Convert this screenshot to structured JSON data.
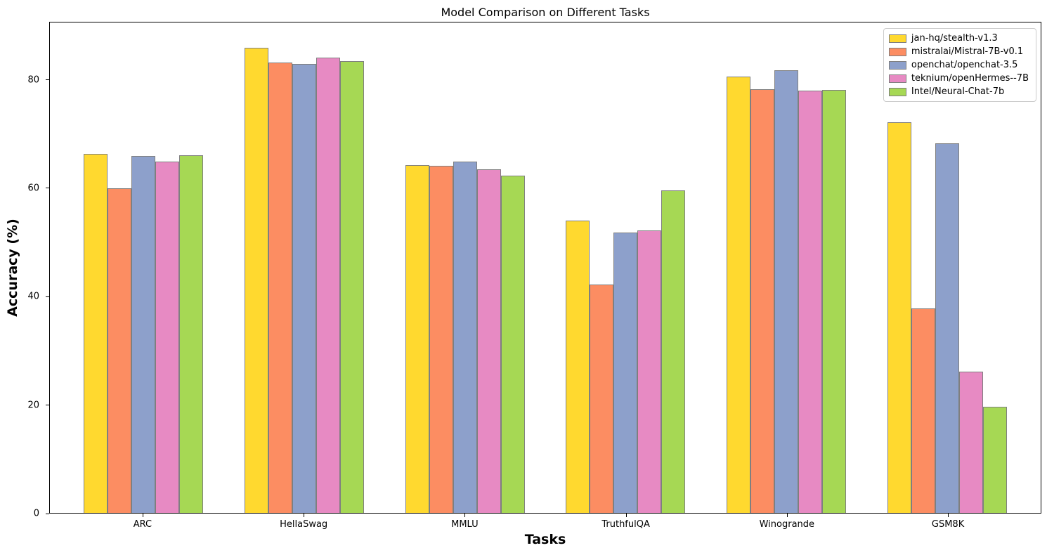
{
  "figure": {
    "title": "Model Comparison on Different Tasks",
    "xlabel": "Tasks",
    "ylabel": "Accuracy (%)"
  },
  "chart_data": {
    "type": "bar",
    "title": "Model Comparison on Different Tasks",
    "xlabel": "Tasks",
    "ylabel": "Accuracy (%)",
    "categories": [
      "ARC",
      "HellaSwag",
      "MMLU",
      "TruthfulQA",
      "Winogrande",
      "GSM8K"
    ],
    "series": [
      {
        "name": "jan-hq/stealth-v1.3",
        "color": "#FFD92F",
        "values": [
          66.4,
          86.0,
          64.3,
          54.1,
          80.7,
          72.3
        ]
      },
      {
        "name": "mistralai/Mistral-7B-v0.1",
        "color": "#FC8D62",
        "values": [
          60.0,
          83.3,
          64.2,
          42.2,
          78.4,
          37.8
        ]
      },
      {
        "name": "openchat/openchat-3.5",
        "color": "#8DA0CB",
        "values": [
          66.0,
          83.0,
          65.0,
          51.9,
          81.9,
          68.3
        ]
      },
      {
        "name": "teknium/openHermes--7B",
        "color": "#E78AC3",
        "values": [
          65.0,
          84.2,
          63.6,
          52.2,
          78.1,
          26.1
        ]
      },
      {
        "name": "Intel/Neural-Chat-7b",
        "color": "#A6D854",
        "values": [
          66.2,
          83.6,
          62.4,
          59.7,
          78.2,
          19.6
        ]
      }
    ],
    "ylim": [
      0,
      90.7
    ],
    "yticks": [
      0,
      20,
      40,
      60,
      80
    ],
    "grid": false,
    "legend_position": "upper right",
    "bar_edge_color": "#7f7f7f",
    "axis_color": "#000000"
  }
}
